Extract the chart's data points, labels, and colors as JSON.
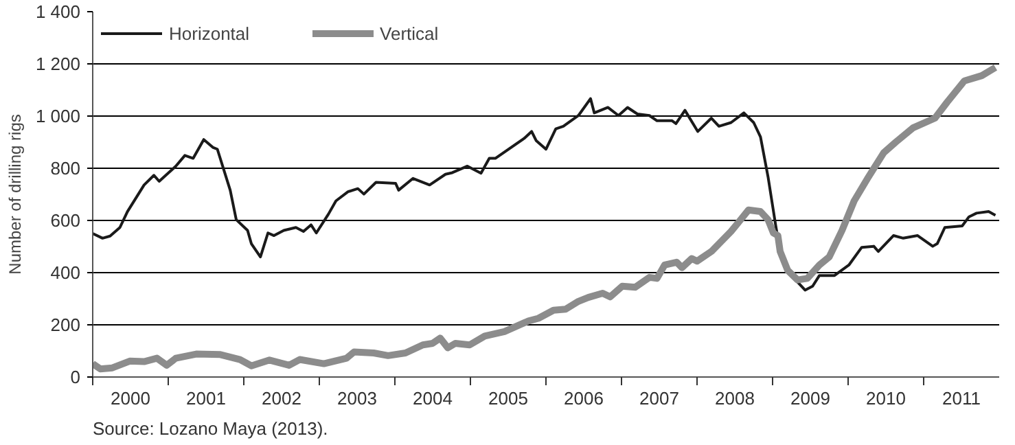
{
  "chart_data": {
    "type": "line",
    "ylabel": "Number of drilling rigs",
    "xlim": [
      2000,
      2012
    ],
    "xticks": [
      {
        "value": 2000,
        "label": null
      },
      {
        "value": 2001,
        "label": null
      },
      {
        "value": 2002,
        "label": null
      },
      {
        "value": 2003,
        "label": null
      },
      {
        "value": 2004,
        "label": null
      },
      {
        "value": 2005,
        "label": null
      },
      {
        "value": 2006,
        "label": null
      },
      {
        "value": 2007,
        "label": null
      },
      {
        "value": 2008,
        "label": null
      },
      {
        "value": 2009,
        "label": null
      },
      {
        "value": 2010,
        "label": null
      },
      {
        "value": 2011,
        "label": null
      },
      {
        "value": 2000.5,
        "label": "2000"
      },
      {
        "value": 2001.5,
        "label": "2001"
      },
      {
        "value": 2002.5,
        "label": "2002"
      },
      {
        "value": 2003.5,
        "label": "2003"
      },
      {
        "value": 2004.5,
        "label": "2004"
      },
      {
        "value": 2005.5,
        "label": "2005"
      },
      {
        "value": 2006.5,
        "label": "2006"
      },
      {
        "value": 2007.5,
        "label": "2007"
      },
      {
        "value": 2008.5,
        "label": "2008"
      },
      {
        "value": 2009.5,
        "label": "2009"
      },
      {
        "value": 2010.5,
        "label": "2010"
      },
      {
        "value": 2011.5,
        "label": "2011"
      }
    ],
    "ylim": [
      0,
      1400
    ],
    "yticks": [
      0,
      200,
      400,
      600,
      800,
      {
        "value": 1000,
        "label": "1 000"
      },
      {
        "value": 1200,
        "label": "1 200"
      },
      {
        "value": 1400,
        "label": "1 400"
      }
    ],
    "grid": "y",
    "legend": "top left",
    "line_style": "solid",
    "marker": "none",
    "annotations": [
      "Source: Lozano Maya (2013)."
    ],
    "series": [
      {
        "name": "Horizontal",
        "color": "#1a1a1a",
        "x": [
          2000.0,
          2000.13,
          2000.23,
          2000.36,
          2000.46,
          2000.68,
          2000.81,
          2000.88,
          2001.1,
          2001.22,
          2001.33,
          2001.47,
          2001.59,
          2001.65,
          2001.82,
          2001.9,
          2002.05,
          2002.1,
          2002.22,
          2002.32,
          2002.4,
          2002.53,
          2002.69,
          2002.79,
          2002.89,
          2002.96,
          2003.12,
          2003.22,
          2003.38,
          2003.51,
          2003.59,
          2003.75,
          2004.01,
          2004.05,
          2004.24,
          2004.46,
          2004.67,
          2004.76,
          2004.96,
          2005.14,
          2005.25,
          2005.33,
          2005.71,
          2005.81,
          2005.87,
          2006.0,
          2006.13,
          2006.23,
          2006.43,
          2006.59,
          2006.64,
          2006.82,
          2006.96,
          2007.08,
          2007.21,
          2007.37,
          2007.47,
          2007.67,
          2007.72,
          2007.84,
          2008.01,
          2008.19,
          2008.29,
          2008.45,
          2008.62,
          2008.75,
          2008.84,
          2008.94,
          2009.04,
          2009.1,
          2009.2,
          2009.33,
          2009.43,
          2009.53,
          2009.62,
          2009.82,
          2010.01,
          2010.18,
          2010.34,
          2010.4,
          2010.6,
          2010.73,
          2010.92,
          2011.12,
          2011.18,
          2011.28,
          2011.51,
          2011.6,
          2011.7,
          2011.86,
          2011.95
        ],
        "values": [
          550,
          532,
          540,
          573,
          634,
          736,
          773,
          750,
          808,
          849,
          838,
          910,
          880,
          873,
          716,
          603,
          562,
          511,
          460,
          552,
          542,
          562,
          573,
          558,
          583,
          552,
          624,
          675,
          710,
          722,
          701,
          746,
          742,
          716,
          761,
          736,
          777,
          783,
          808,
          781,
          838,
          838,
          914,
          941,
          906,
          873,
          951,
          961,
          1002,
          1067,
          1012,
          1033,
          1002,
          1033,
          1008,
          1002,
          982,
          982,
          971,
          1022,
          941,
          992,
          961,
          975,
          1012,
          975,
          920,
          767,
          583,
          481,
          409,
          364,
          333,
          348,
          389,
          389,
          429,
          497,
          501,
          481,
          542,
          532,
          542,
          501,
          511,
          573,
          579,
          614,
          628,
          634,
          620
        ]
      },
      {
        "name": "Vertical",
        "color": "#8c8c8c",
        "x": [
          2000.0,
          2000.1,
          2000.26,
          2000.49,
          2000.68,
          2000.85,
          2000.98,
          2001.1,
          2001.37,
          2001.69,
          2001.95,
          2002.1,
          2002.34,
          2002.6,
          2002.74,
          2003.06,
          2003.36,
          2003.46,
          2003.72,
          2003.91,
          2004.14,
          2004.37,
          2004.5,
          2004.6,
          2004.7,
          2004.8,
          2004.99,
          2005.19,
          2005.45,
          2005.77,
          2005.9,
          2006.1,
          2006.26,
          2006.43,
          2006.56,
          2006.75,
          2006.85,
          2007.01,
          2007.18,
          2007.37,
          2007.47,
          2007.57,
          2007.73,
          2007.8,
          2007.93,
          2008.0,
          2008.19,
          2008.45,
          2008.55,
          2008.68,
          2008.84,
          2008.94,
          2009.01,
          2009.07,
          2009.1,
          2009.2,
          2009.33,
          2009.46,
          2009.62,
          2009.75,
          2009.92,
          2010.08,
          2010.27,
          2010.47,
          2010.63,
          2010.86,
          2011.15,
          2011.31,
          2011.54,
          2011.77,
          2011.95
        ],
        "values": [
          51,
          31,
          35,
          61,
          59,
          72,
          45,
          72,
          88,
          86,
          67,
          43,
          65,
          45,
          67,
          51,
          72,
          96,
          92,
          82,
          92,
          123,
          129,
          149,
          112,
          129,
          123,
          157,
          174,
          215,
          225,
          256,
          260,
          290,
          305,
          321,
          307,
          348,
          344,
          382,
          378,
          429,
          440,
          419,
          454,
          444,
          481,
          558,
          593,
          640,
          634,
          603,
          552,
          542,
          481,
          409,
          372,
          378,
          429,
          460,
          562,
          675,
          767,
          859,
          900,
          955,
          992,
          1053,
          1135,
          1155,
          1186
        ]
      }
    ]
  }
}
